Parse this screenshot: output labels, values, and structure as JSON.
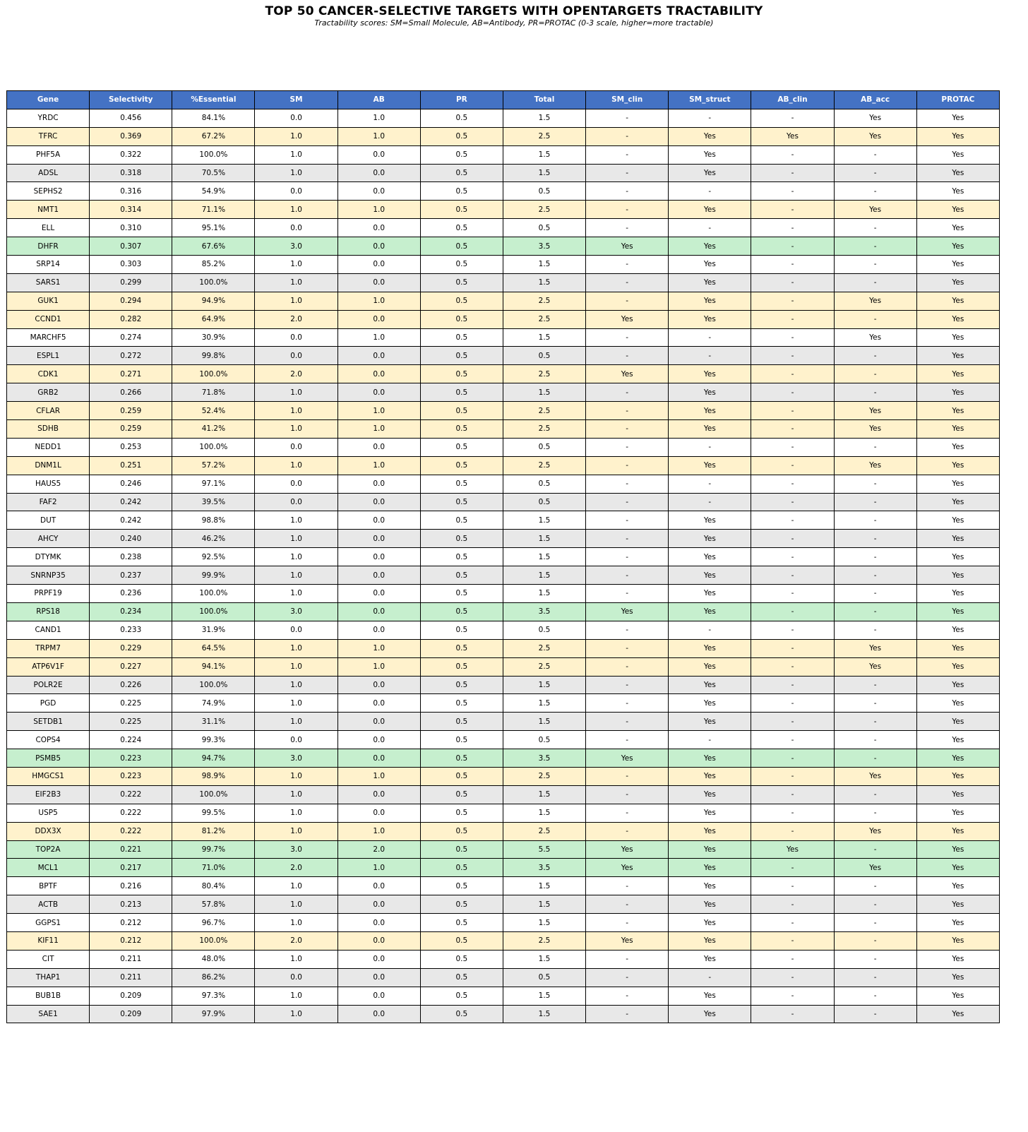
{
  "title": "TOP 50 CANCER-SELECTIVE TARGETS WITH OPENTARGETS TRACTABILITY",
  "subtitle": "Tractability scores: SM=Small Molecule, AB=Antibody, PR=PROTAC (0-3 scale, higher=more tractable)",
  "colors": {
    "header": "#4472C4",
    "header_text": "#FFFFFF",
    "high_total": "#C6EFCE",
    "mid_total": "#FFF2CC",
    "row_even": "#FFFFFF",
    "row_odd": "#E8E8E8"
  },
  "chart_data": {
    "type": "table",
    "title": "TOP 50 CANCER-SELECTIVE TARGETS WITH OPENTARGETS TRACTABILITY",
    "columns": [
      "Gene",
      "Selectivity",
      "%Essential",
      "SM",
      "AB",
      "PR",
      "Total",
      "SM_clin",
      "SM_struct",
      "AB_clin",
      "AB_acc",
      "PROTAC"
    ],
    "rows": [
      [
        "YRDC",
        "0.456",
        "84.1%",
        "0.0",
        "1.0",
        "0.5",
        "1.5",
        "-",
        "-",
        "-",
        "Yes",
        "Yes"
      ],
      [
        "TFRC",
        "0.369",
        "67.2%",
        "1.0",
        "1.0",
        "0.5",
        "2.5",
        "-",
        "Yes",
        "Yes",
        "Yes",
        "Yes"
      ],
      [
        "PHF5A",
        "0.322",
        "100.0%",
        "1.0",
        "0.0",
        "0.5",
        "1.5",
        "-",
        "Yes",
        "-",
        "-",
        "Yes"
      ],
      [
        "ADSL",
        "0.318",
        "70.5%",
        "1.0",
        "0.0",
        "0.5",
        "1.5",
        "-",
        "Yes",
        "-",
        "-",
        "Yes"
      ],
      [
        "SEPHS2",
        "0.316",
        "54.9%",
        "0.0",
        "0.0",
        "0.5",
        "0.5",
        "-",
        "-",
        "-",
        "-",
        "Yes"
      ],
      [
        "NMT1",
        "0.314",
        "71.1%",
        "1.0",
        "1.0",
        "0.5",
        "2.5",
        "-",
        "Yes",
        "-",
        "Yes",
        "Yes"
      ],
      [
        "ELL",
        "0.310",
        "95.1%",
        "0.0",
        "0.0",
        "0.5",
        "0.5",
        "-",
        "-",
        "-",
        "-",
        "Yes"
      ],
      [
        "DHFR",
        "0.307",
        "67.6%",
        "3.0",
        "0.0",
        "0.5",
        "3.5",
        "Yes",
        "Yes",
        "-",
        "-",
        "Yes"
      ],
      [
        "SRP14",
        "0.303",
        "85.2%",
        "1.0",
        "0.0",
        "0.5",
        "1.5",
        "-",
        "Yes",
        "-",
        "-",
        "Yes"
      ],
      [
        "SARS1",
        "0.299",
        "100.0%",
        "1.0",
        "0.0",
        "0.5",
        "1.5",
        "-",
        "Yes",
        "-",
        "-",
        "Yes"
      ],
      [
        "GUK1",
        "0.294",
        "94.9%",
        "1.0",
        "1.0",
        "0.5",
        "2.5",
        "-",
        "Yes",
        "-",
        "Yes",
        "Yes"
      ],
      [
        "CCND1",
        "0.282",
        "64.9%",
        "2.0",
        "0.0",
        "0.5",
        "2.5",
        "Yes",
        "Yes",
        "-",
        "-",
        "Yes"
      ],
      [
        "MARCHF5",
        "0.274",
        "30.9%",
        "0.0",
        "1.0",
        "0.5",
        "1.5",
        "-",
        "-",
        "-",
        "Yes",
        "Yes"
      ],
      [
        "ESPL1",
        "0.272",
        "99.8%",
        "0.0",
        "0.0",
        "0.5",
        "0.5",
        "-",
        "-",
        "-",
        "-",
        "Yes"
      ],
      [
        "CDK1",
        "0.271",
        "100.0%",
        "2.0",
        "0.0",
        "0.5",
        "2.5",
        "Yes",
        "Yes",
        "-",
        "-",
        "Yes"
      ],
      [
        "GRB2",
        "0.266",
        "71.8%",
        "1.0",
        "0.0",
        "0.5",
        "1.5",
        "-",
        "Yes",
        "-",
        "-",
        "Yes"
      ],
      [
        "CFLAR",
        "0.259",
        "52.4%",
        "1.0",
        "1.0",
        "0.5",
        "2.5",
        "-",
        "Yes",
        "-",
        "Yes",
        "Yes"
      ],
      [
        "SDHB",
        "0.259",
        "41.2%",
        "1.0",
        "1.0",
        "0.5",
        "2.5",
        "-",
        "Yes",
        "-",
        "Yes",
        "Yes"
      ],
      [
        "NEDD1",
        "0.253",
        "100.0%",
        "0.0",
        "0.0",
        "0.5",
        "0.5",
        "-",
        "-",
        "-",
        "-",
        "Yes"
      ],
      [
        "DNM1L",
        "0.251",
        "57.2%",
        "1.0",
        "1.0",
        "0.5",
        "2.5",
        "-",
        "Yes",
        "-",
        "Yes",
        "Yes"
      ],
      [
        "HAUS5",
        "0.246",
        "97.1%",
        "0.0",
        "0.0",
        "0.5",
        "0.5",
        "-",
        "-",
        "-",
        "-",
        "Yes"
      ],
      [
        "FAF2",
        "0.242",
        "39.5%",
        "0.0",
        "0.0",
        "0.5",
        "0.5",
        "-",
        "-",
        "-",
        "-",
        "Yes"
      ],
      [
        "DUT",
        "0.242",
        "98.8%",
        "1.0",
        "0.0",
        "0.5",
        "1.5",
        "-",
        "Yes",
        "-",
        "-",
        "Yes"
      ],
      [
        "AHCY",
        "0.240",
        "46.2%",
        "1.0",
        "0.0",
        "0.5",
        "1.5",
        "-",
        "Yes",
        "-",
        "-",
        "Yes"
      ],
      [
        "DTYMK",
        "0.238",
        "92.5%",
        "1.0",
        "0.0",
        "0.5",
        "1.5",
        "-",
        "Yes",
        "-",
        "-",
        "Yes"
      ],
      [
        "SNRNP35",
        "0.237",
        "99.9%",
        "1.0",
        "0.0",
        "0.5",
        "1.5",
        "-",
        "Yes",
        "-",
        "-",
        "Yes"
      ],
      [
        "PRPF19",
        "0.236",
        "100.0%",
        "1.0",
        "0.0",
        "0.5",
        "1.5",
        "-",
        "Yes",
        "-",
        "-",
        "Yes"
      ],
      [
        "RPS18",
        "0.234",
        "100.0%",
        "3.0",
        "0.0",
        "0.5",
        "3.5",
        "Yes",
        "Yes",
        "-",
        "-",
        "Yes"
      ],
      [
        "CAND1",
        "0.233",
        "31.9%",
        "0.0",
        "0.0",
        "0.5",
        "0.5",
        "-",
        "-",
        "-",
        "-",
        "Yes"
      ],
      [
        "TRPM7",
        "0.229",
        "64.5%",
        "1.0",
        "1.0",
        "0.5",
        "2.5",
        "-",
        "Yes",
        "-",
        "Yes",
        "Yes"
      ],
      [
        "ATP6V1F",
        "0.227",
        "94.1%",
        "1.0",
        "1.0",
        "0.5",
        "2.5",
        "-",
        "Yes",
        "-",
        "Yes",
        "Yes"
      ],
      [
        "POLR2E",
        "0.226",
        "100.0%",
        "1.0",
        "0.0",
        "0.5",
        "1.5",
        "-",
        "Yes",
        "-",
        "-",
        "Yes"
      ],
      [
        "PGD",
        "0.225",
        "74.9%",
        "1.0",
        "0.0",
        "0.5",
        "1.5",
        "-",
        "Yes",
        "-",
        "-",
        "Yes"
      ],
      [
        "SETDB1",
        "0.225",
        "31.1%",
        "1.0",
        "0.0",
        "0.5",
        "1.5",
        "-",
        "Yes",
        "-",
        "-",
        "Yes"
      ],
      [
        "COPS4",
        "0.224",
        "99.3%",
        "0.0",
        "0.0",
        "0.5",
        "0.5",
        "-",
        "-",
        "-",
        "-",
        "Yes"
      ],
      [
        "PSMB5",
        "0.223",
        "94.7%",
        "3.0",
        "0.0",
        "0.5",
        "3.5",
        "Yes",
        "Yes",
        "-",
        "-",
        "Yes"
      ],
      [
        "HMGCS1",
        "0.223",
        "98.9%",
        "1.0",
        "1.0",
        "0.5",
        "2.5",
        "-",
        "Yes",
        "-",
        "Yes",
        "Yes"
      ],
      [
        "EIF2B3",
        "0.222",
        "100.0%",
        "1.0",
        "0.0",
        "0.5",
        "1.5",
        "-",
        "Yes",
        "-",
        "-",
        "Yes"
      ],
      [
        "USP5",
        "0.222",
        "99.5%",
        "1.0",
        "0.0",
        "0.5",
        "1.5",
        "-",
        "Yes",
        "-",
        "-",
        "Yes"
      ],
      [
        "DDX3X",
        "0.222",
        "81.2%",
        "1.0",
        "1.0",
        "0.5",
        "2.5",
        "-",
        "Yes",
        "-",
        "Yes",
        "Yes"
      ],
      [
        "TOP2A",
        "0.221",
        "99.7%",
        "3.0",
        "2.0",
        "0.5",
        "5.5",
        "Yes",
        "Yes",
        "Yes",
        "-",
        "Yes"
      ],
      [
        "MCL1",
        "0.217",
        "71.0%",
        "2.0",
        "1.0",
        "0.5",
        "3.5",
        "Yes",
        "Yes",
        "-",
        "Yes",
        "Yes"
      ],
      [
        "BPTF",
        "0.216",
        "80.4%",
        "1.0",
        "0.0",
        "0.5",
        "1.5",
        "-",
        "Yes",
        "-",
        "-",
        "Yes"
      ],
      [
        "ACTB",
        "0.213",
        "57.8%",
        "1.0",
        "0.0",
        "0.5",
        "1.5",
        "-",
        "Yes",
        "-",
        "-",
        "Yes"
      ],
      [
        "GGPS1",
        "0.212",
        "96.7%",
        "1.0",
        "0.0",
        "0.5",
        "1.5",
        "-",
        "Yes",
        "-",
        "-",
        "Yes"
      ],
      [
        "KIF11",
        "0.212",
        "100.0%",
        "2.0",
        "0.0",
        "0.5",
        "2.5",
        "Yes",
        "Yes",
        "-",
        "-",
        "Yes"
      ],
      [
        "CIT",
        "0.211",
        "48.0%",
        "1.0",
        "0.0",
        "0.5",
        "1.5",
        "-",
        "Yes",
        "-",
        "-",
        "Yes"
      ],
      [
        "THAP1",
        "0.211",
        "86.2%",
        "0.0",
        "0.0",
        "0.5",
        "0.5",
        "-",
        "-",
        "-",
        "-",
        "Yes"
      ],
      [
        "BUB1B",
        "0.209",
        "97.3%",
        "1.0",
        "0.0",
        "0.5",
        "1.5",
        "-",
        "Yes",
        "-",
        "-",
        "Yes"
      ],
      [
        "SAE1",
        "0.209",
        "97.9%",
        "1.0",
        "0.0",
        "0.5",
        "1.5",
        "-",
        "Yes",
        "-",
        "-",
        "Yes"
      ]
    ]
  }
}
